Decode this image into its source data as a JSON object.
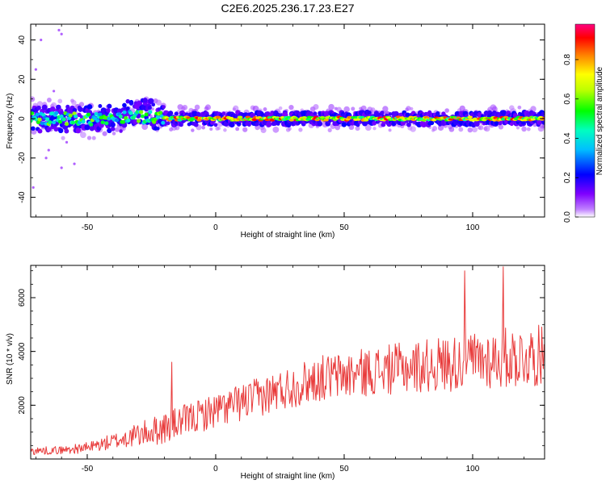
{
  "title": "C2E6.2025.236.17.23.E27",
  "colors": {
    "signal_line": "#e83a3a",
    "axis": "#000000",
    "background": "#ffffff"
  },
  "chart_data": [
    {
      "type": "heatmap",
      "name": "spectrogram",
      "title": "C2E6.2025.236.17.23.E27",
      "xlabel": "Height of straight line (km)",
      "ylabel": "Frequency (Hz)",
      "xlim": [
        -72,
        128
      ],
      "ylim": [
        -50,
        48
      ],
      "xticks": [
        -50,
        0,
        50,
        100
      ],
      "yticks": [
        -40,
        -20,
        0,
        20,
        40
      ],
      "colorbar": {
        "label": "Normalized spectral amplitude",
        "range": [
          0,
          0.98
        ],
        "ticks": [
          "0.0",
          "0.2",
          "0.4",
          "0.6",
          "0.8"
        ],
        "colormap": [
          "#8a2be2",
          "#0000ff",
          "#00bfff",
          "#00ff7f",
          "#7fff00",
          "#ffff00",
          "#ff8c00",
          "#ff0000",
          "#ff0080"
        ]
      },
      "band": {
        "description": "energy concentrated near 0 Hz across all heights",
        "center_hz": 0,
        "halfwidth_hz": 4,
        "spread_region_km": [
          -72,
          -20
        ],
        "spread_region_halfwidth_hz": 8,
        "peak_region_km": [
          -20,
          128
        ],
        "peak_amplitude": 0.95
      }
    },
    {
      "type": "line",
      "name": "snr",
      "xlabel": "Height of straight line (km)",
      "ylabel": "SNR (10 * v/v)",
      "xlim": [
        -72,
        128
      ],
      "ylim": [
        0,
        7200
      ],
      "xticks": [
        -50,
        0,
        50,
        100
      ],
      "yticks": [
        2000,
        4000,
        6000
      ],
      "series": [
        {
          "name": "SNR",
          "description": "noisy trace rising from ~300 to ~4000 with spikes",
          "trend_x": [
            -72,
            -60,
            -50,
            -40,
            -30,
            -20,
            -10,
            0,
            10,
            20,
            30,
            40,
            50,
            60,
            70,
            80,
            90,
            100,
            110,
            120,
            128
          ],
          "trend_y": [
            300,
            330,
            420,
            650,
            900,
            1150,
            1500,
            1800,
            2100,
            2400,
            2700,
            3000,
            3100,
            3250,
            3350,
            3450,
            3550,
            3650,
            3750,
            3800,
            3850
          ],
          "noise_amplitude": [
            150,
            150,
            200,
            300,
            450,
            600,
            600,
            650,
            700,
            750,
            800,
            850,
            900,
            900,
            950,
            1000,
            1050,
            1100,
            1150,
            1150,
            1150
          ],
          "peaks": [
            {
              "x": -17,
              "y": 3600
            },
            {
              "x": 97,
              "y": 7000
            },
            {
              "x": 112,
              "y": 7150
            }
          ]
        }
      ]
    }
  ]
}
